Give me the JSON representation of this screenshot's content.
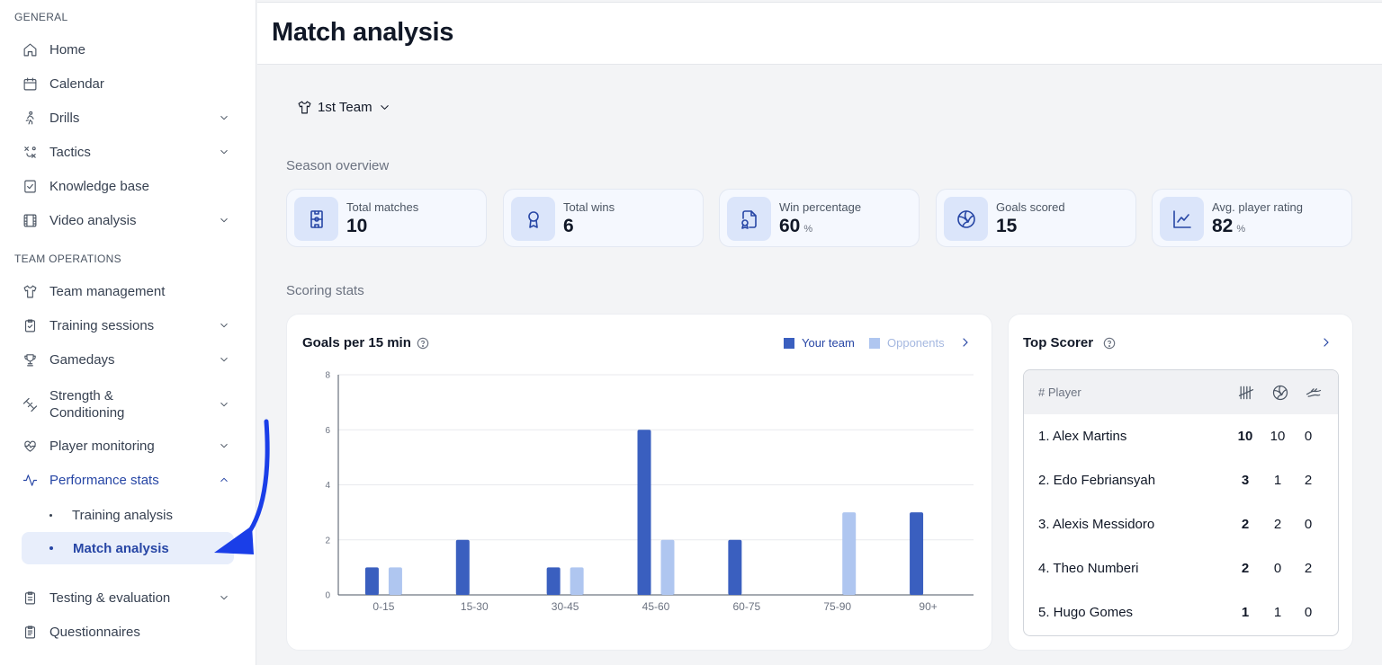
{
  "sidebar": {
    "general_label": "GENERAL",
    "team_ops_label": "TEAM OPERATIONS",
    "items": [
      {
        "label": "Home",
        "icon": "home-icon"
      },
      {
        "label": "Calendar",
        "icon": "calendar-icon"
      },
      {
        "label": "Drills",
        "icon": "running-icon"
      },
      {
        "label": "Tactics",
        "icon": "tactics-icon"
      },
      {
        "label": "Knowledge base",
        "icon": "checklist-icon"
      },
      {
        "label": "Video analysis",
        "icon": "film-icon"
      },
      {
        "label": "Team management",
        "icon": "shirt-icon"
      },
      {
        "label": "Training sessions",
        "icon": "clipboard-icon"
      },
      {
        "label": "Gamedays",
        "icon": "trophy-icon"
      },
      {
        "label": "Strength &",
        "label2": "Conditioning",
        "icon": "dumbbell-icon"
      },
      {
        "label": "Player monitoring",
        "icon": "heart-pulse-icon"
      },
      {
        "label": "Performance stats",
        "icon": "activity-icon"
      },
      {
        "label": "Testing & evaluation",
        "icon": "clipboard-list-icon"
      },
      {
        "label": "Questionnaires",
        "icon": "clipboard-text-icon"
      }
    ],
    "sub_items": [
      {
        "label": "Training analysis"
      },
      {
        "label": "Match analysis"
      }
    ]
  },
  "header": {
    "title": "Match analysis"
  },
  "team_select": {
    "label": "1st Team"
  },
  "season_overview": {
    "title": "Season overview",
    "cards": [
      {
        "label": "Total matches",
        "value": "10",
        "unit": "",
        "icon": "pitch-icon"
      },
      {
        "label": "Total wins",
        "value": "6",
        "unit": "",
        "icon": "award-icon"
      },
      {
        "label": "Win percentage",
        "value": "60",
        "unit": "%",
        "icon": "file-badge-icon"
      },
      {
        "label": "Goals scored",
        "value": "15",
        "unit": "",
        "icon": "ball-icon"
      },
      {
        "label": "Avg. player rating",
        "value": "82",
        "unit": "%",
        "icon": "line-chart-icon"
      }
    ]
  },
  "scoring_stats": {
    "title": "Scoring stats"
  },
  "goals_chart": {
    "title": "Goals per 15 min",
    "legend_your_team": "Your team",
    "legend_opponents": "Opponents"
  },
  "top_scorer": {
    "title": "Top Scorer",
    "header_player": "# Player",
    "rows": [
      {
        "player": "1. Alex Martins",
        "a": "10",
        "b": "10",
        "c": "0"
      },
      {
        "player": "2. Edo Febriansyah",
        "a": "3",
        "b": "1",
        "c": "2"
      },
      {
        "player": "3. Alexis Messidoro",
        "a": "2",
        "b": "2",
        "c": "0"
      },
      {
        "player": "4. Theo Numberi",
        "a": "2",
        "b": "0",
        "c": "2"
      },
      {
        "player": "5. Hugo Gomes",
        "a": "1",
        "b": "1",
        "c": "0"
      }
    ]
  },
  "colors": {
    "your_team": "#3a5fbf",
    "opponents": "#afc6f0",
    "accent": "#2746a5",
    "annotation_arrow": "#1a3ee8"
  },
  "chart_data": {
    "type": "bar",
    "title": "Goals per 15 min",
    "categories": [
      "0-15",
      "15-30",
      "30-45",
      "45-60",
      "60-75",
      "75-90",
      "90+"
    ],
    "series": [
      {
        "name": "Your team",
        "values": [
          1,
          2,
          1,
          6,
          2,
          0,
          3
        ]
      },
      {
        "name": "Opponents",
        "values": [
          1,
          0,
          1,
          2,
          0,
          3,
          0
        ]
      }
    ],
    "ylim": [
      0,
      8
    ],
    "yticks": [
      "0",
      "2",
      "4",
      "6",
      "8"
    ],
    "grid": true,
    "legend": "top-right"
  }
}
